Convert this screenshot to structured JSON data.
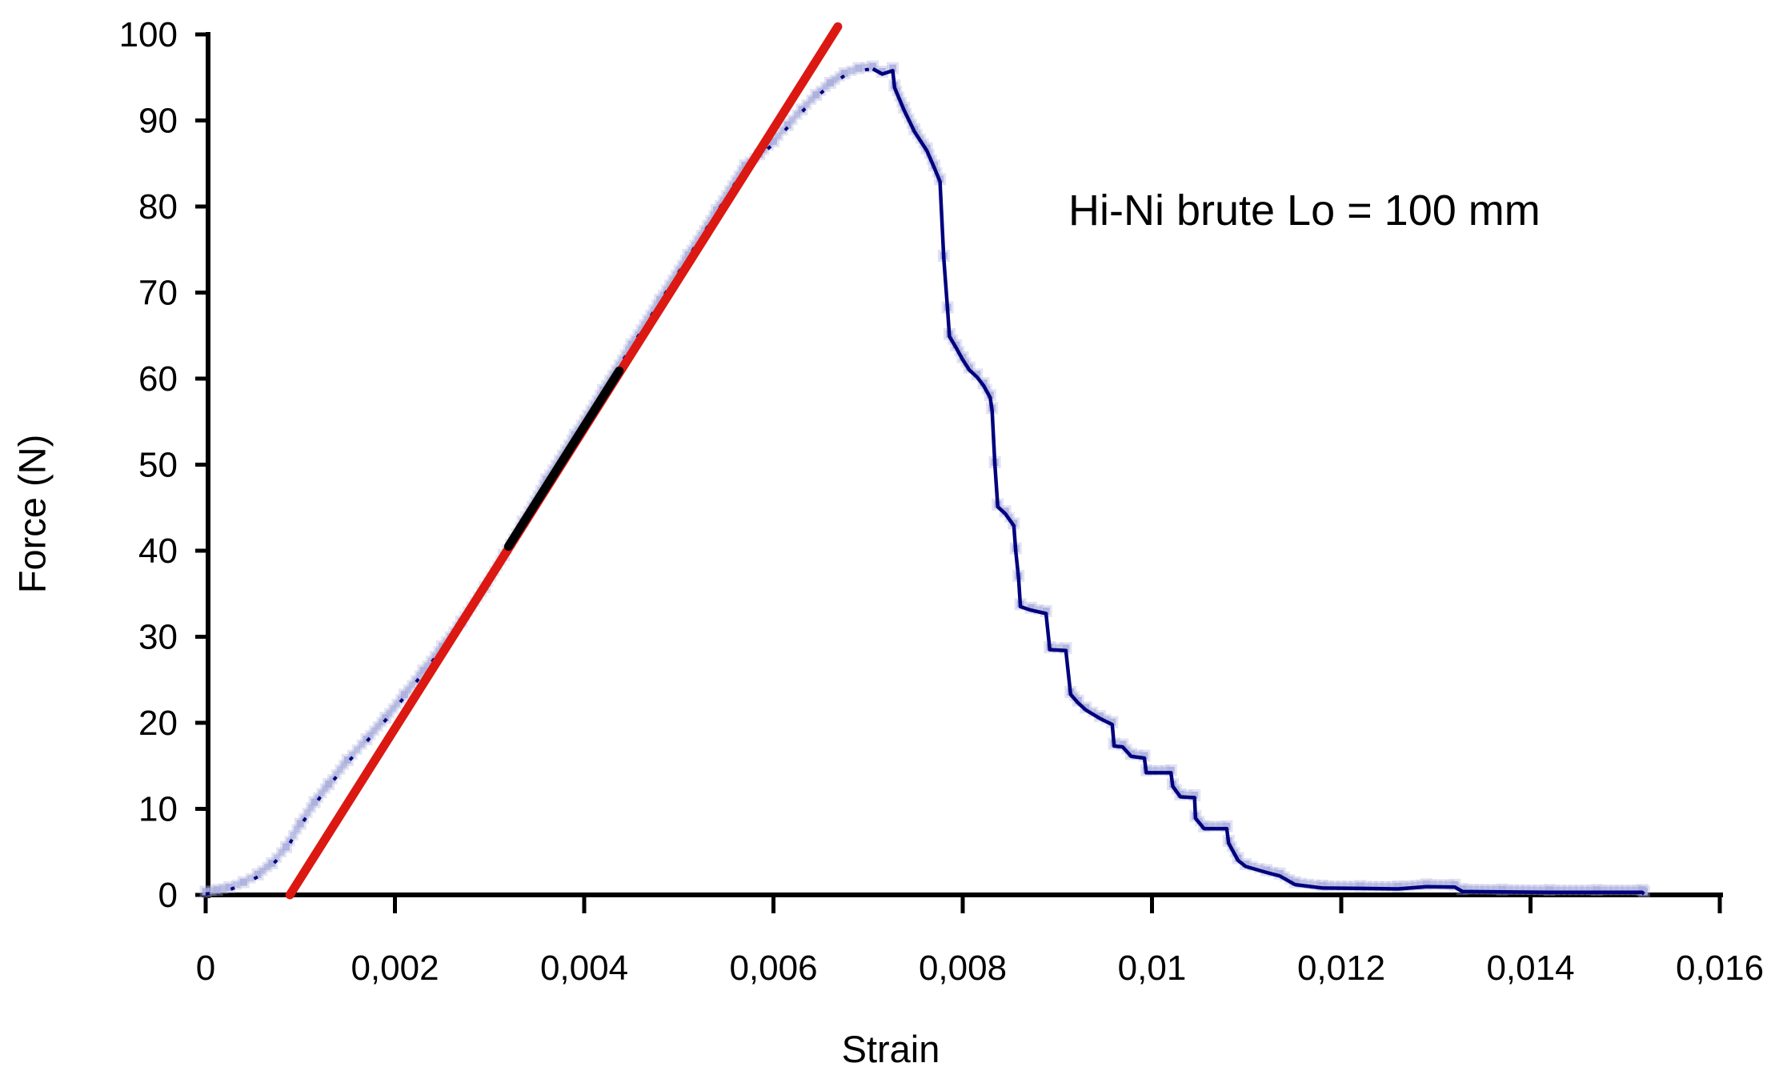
{
  "figure": {
    "background": "#FFFFFF"
  },
  "chart_data": {
    "type": "line",
    "title": "Hi-Ni brute Lo = 100 mm",
    "xlabel": "Strain",
    "ylabel": "Force (N)",
    "xlim": [
      0,
      0.016
    ],
    "ylim": [
      0,
      100
    ],
    "grid": false,
    "legend": "none",
    "decimal_separator": ",",
    "x_ticks": {
      "values": [
        0,
        0.002,
        0.004,
        0.006,
        0.008,
        0.01,
        0.012,
        0.014,
        0.016
      ],
      "labels": [
        "0",
        "0,002",
        "0,004",
        "0,006",
        "0,008",
        "0,01",
        "0,012",
        "0,014",
        "0,016"
      ]
    },
    "y_ticks": {
      "values": [
        0,
        10,
        20,
        30,
        40,
        50,
        60,
        70,
        80,
        90,
        100
      ],
      "labels": [
        "0",
        "10",
        "20",
        "30",
        "40",
        "50",
        "60",
        "70",
        "80",
        "90",
        "100"
      ]
    },
    "series": [
      {
        "name": "measured-force-strain-curve",
        "style": "scatter-line",
        "line_color": "#00007D",
        "marker_color": "#A9ADDC",
        "points": [
          [
            0.0,
            0.1
          ],
          [
            0.00012,
            0.3
          ],
          [
            0.00025,
            0.6
          ],
          [
            0.0004,
            1.2
          ],
          [
            0.00055,
            2.1
          ],
          [
            0.0007,
            3.4
          ],
          [
            0.00085,
            5.3
          ],
          [
            0.001,
            8.0
          ],
          [
            0.00115,
            10.5
          ],
          [
            0.0013,
            12.6
          ],
          [
            0.0015,
            15.4
          ],
          [
            0.0017,
            17.8
          ],
          [
            0.0019,
            20.3
          ],
          [
            0.0021,
            23.0
          ],
          [
            0.0023,
            25.8
          ],
          [
            0.0025,
            28.6
          ],
          [
            0.0027,
            31.5
          ],
          [
            0.00295,
            35.5
          ],
          [
            0.00315,
            39.2
          ],
          [
            0.00335,
            43.1
          ],
          [
            0.0036,
            48.0
          ],
          [
            0.0039,
            53.2
          ],
          [
            0.0042,
            58.4
          ],
          [
            0.0045,
            63.7
          ],
          [
            0.0048,
            68.9
          ],
          [
            0.0051,
            74.1
          ],
          [
            0.0054,
            79.3
          ],
          [
            0.0057,
            84.5
          ],
          [
            0.00585,
            85.8
          ],
          [
            0.006,
            87.3
          ],
          [
            0.00615,
            89.2
          ],
          [
            0.0063,
            91.0
          ],
          [
            0.00645,
            92.7
          ],
          [
            0.0066,
            94.1
          ],
          [
            0.00675,
            95.2
          ],
          [
            0.0069,
            95.8
          ],
          [
            0.00705,
            96.0
          ],
          [
            0.00715,
            95.4
          ],
          [
            0.00726,
            95.8
          ],
          [
            0.00728,
            93.8
          ],
          [
            0.00738,
            91.2
          ],
          [
            0.00749,
            88.7
          ],
          [
            0.00762,
            86.5
          ],
          [
            0.0077,
            84.5
          ],
          [
            0.00776,
            82.9
          ],
          [
            0.0078,
            74.0
          ],
          [
            0.00784,
            68.0
          ],
          [
            0.00786,
            64.9
          ],
          [
            0.00793,
            63.6
          ],
          [
            0.008,
            62.2
          ],
          [
            0.00807,
            61.0
          ],
          [
            0.00815,
            60.2
          ],
          [
            0.00822,
            59.2
          ],
          [
            0.00829,
            57.8
          ],
          [
            0.00831,
            56.3
          ],
          [
            0.00834,
            50.0
          ],
          [
            0.00837,
            45.1
          ],
          [
            0.00845,
            44.3
          ],
          [
            0.00854,
            42.9
          ],
          [
            0.00856,
            40.0
          ],
          [
            0.00859,
            36.8
          ],
          [
            0.00861,
            33.5
          ],
          [
            0.00872,
            33.1
          ],
          [
            0.00888,
            32.7
          ],
          [
            0.00892,
            28.5
          ],
          [
            0.00909,
            28.4
          ],
          [
            0.00914,
            23.3
          ],
          [
            0.00922,
            22.3
          ],
          [
            0.0093,
            21.5
          ],
          [
            0.00945,
            20.5
          ],
          [
            0.00958,
            19.8
          ],
          [
            0.0096,
            17.3
          ],
          [
            0.00969,
            17.2
          ],
          [
            0.00978,
            16.1
          ],
          [
            0.00992,
            15.9
          ],
          [
            0.00994,
            14.2
          ],
          [
            0.0102,
            14.2
          ],
          [
            0.01022,
            12.6
          ],
          [
            0.0103,
            11.4
          ],
          [
            0.01045,
            11.3
          ],
          [
            0.01046,
            8.9
          ],
          [
            0.01055,
            7.7
          ],
          [
            0.01079,
            7.7
          ],
          [
            0.01081,
            6.0
          ],
          [
            0.01091,
            4.0
          ],
          [
            0.01099,
            3.3
          ],
          [
            0.01121,
            2.6
          ],
          [
            0.01135,
            2.2
          ],
          [
            0.01151,
            1.2
          ],
          [
            0.0118,
            0.8
          ],
          [
            0.0122,
            0.75
          ],
          [
            0.0126,
            0.7
          ],
          [
            0.0129,
            0.95
          ],
          [
            0.0132,
            0.9
          ],
          [
            0.01328,
            0.4
          ],
          [
            0.0137,
            0.35
          ],
          [
            0.0142,
            0.3
          ],
          [
            0.0147,
            0.3
          ],
          [
            0.01518,
            0.3
          ],
          [
            0.0152,
            0.1
          ]
        ]
      },
      {
        "name": "linear-fit-line",
        "style": "straight-line",
        "color": "#DC1812",
        "points": [
          [
            0.00089,
            0
          ],
          [
            0.00668,
            100.9
          ]
        ]
      },
      {
        "name": "fit-region-segment",
        "style": "straight-line",
        "color": "#000000",
        "points": [
          [
            0.0032,
            40.5
          ],
          [
            0.00437,
            60.9
          ]
        ]
      }
    ]
  }
}
